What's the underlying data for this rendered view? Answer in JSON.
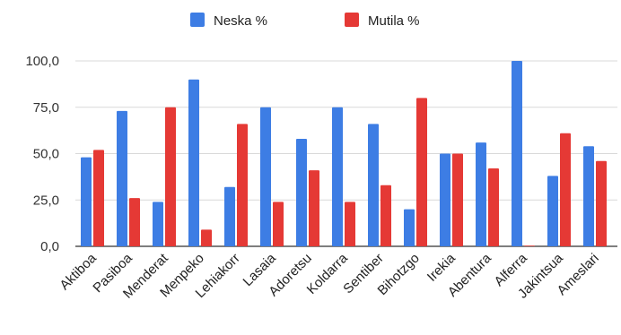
{
  "corner_label": "",
  "chart_data": {
    "type": "bar",
    "title": "",
    "xlabel": "",
    "ylabel": "",
    "ylim": [
      0,
      100
    ],
    "yticks": [
      0,
      25,
      50,
      75,
      100
    ],
    "ytick_labels": [
      "0,0",
      "25,0",
      "50,0",
      "75,0",
      "100,0"
    ],
    "grid": true,
    "legend_position": "top",
    "categories": [
      "Aktiboa",
      "Pasiboa",
      "Menderat",
      "Menpeko",
      "Lehiakorr",
      "Lasaia",
      "Adoretsu",
      "Koldarra",
      "Sentiber",
      "Bihotzgo",
      "Irekia",
      "Abentura",
      "Alferra",
      "Jakintsua",
      "Ameslari"
    ],
    "series": [
      {
        "name": "Neska %",
        "color": "#3d7de4",
        "values": [
          48,
          73,
          24,
          90,
          32,
          75,
          58,
          75,
          66,
          20,
          50,
          56,
          100,
          38,
          54
        ]
      },
      {
        "name": "Mutila %",
        "color": "#e53935",
        "values": [
          52,
          26,
          75,
          9,
          66,
          24,
          41,
          24,
          33,
          80,
          50,
          42,
          0,
          61,
          46
        ]
      }
    ]
  }
}
